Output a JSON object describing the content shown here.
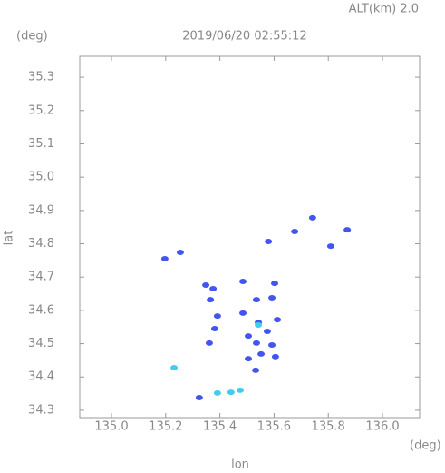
{
  "chart_data": {
    "type": "scatter",
    "title": "2019/06/20 02:55:12",
    "annotation": "ALT(km) 2.0",
    "y_unit": "(deg)",
    "x_unit": "(deg)",
    "xlabel": "lon",
    "ylabel": "lat",
    "xlim": [
      134.883,
      136.137
    ],
    "ylim": [
      34.278,
      35.363
    ],
    "xticks": [
      {
        "value": 135.0,
        "label": "135.0"
      },
      135.2,
      135.4,
      135.6,
      135.8,
      {
        "value": 136.0,
        "label": "136.0"
      }
    ],
    "yticks": [
      34.3,
      34.4,
      34.5,
      34.6,
      34.7,
      34.8,
      34.9,
      {
        "value": 35.0,
        "label": "35.0"
      },
      35.1,
      35.2,
      35.3
    ],
    "grid": false,
    "series": [
      {
        "color": "#4455ee",
        "x": [
          135.742,
          135.87,
          135.676,
          135.809,
          135.579,
          135.254,
          135.197,
          135.348,
          135.375,
          135.485,
          135.602,
          135.535,
          135.592,
          135.485,
          135.542,
          135.505,
          135.535,
          135.575,
          135.592,
          135.612,
          135.552,
          135.505,
          135.605,
          135.532,
          135.381,
          135.361,
          135.324,
          135.391,
          135.365
        ],
        "values": [
          34.878,
          34.842,
          34.837,
          34.793,
          34.807,
          34.774,
          34.755,
          34.676,
          34.665,
          34.687,
          34.681,
          34.632,
          34.638,
          34.592,
          34.564,
          34.523,
          34.502,
          34.537,
          34.496,
          34.572,
          34.469,
          34.455,
          34.461,
          34.42,
          34.545,
          34.502,
          34.338,
          34.583,
          34.632
        ]
      },
      {
        "color": "#44ccee",
        "x": [
          135.231,
          135.391,
          135.441,
          135.542,
          135.475
        ],
        "values": [
          34.428,
          34.352,
          34.354,
          34.556,
          34.36
        ]
      }
    ]
  }
}
